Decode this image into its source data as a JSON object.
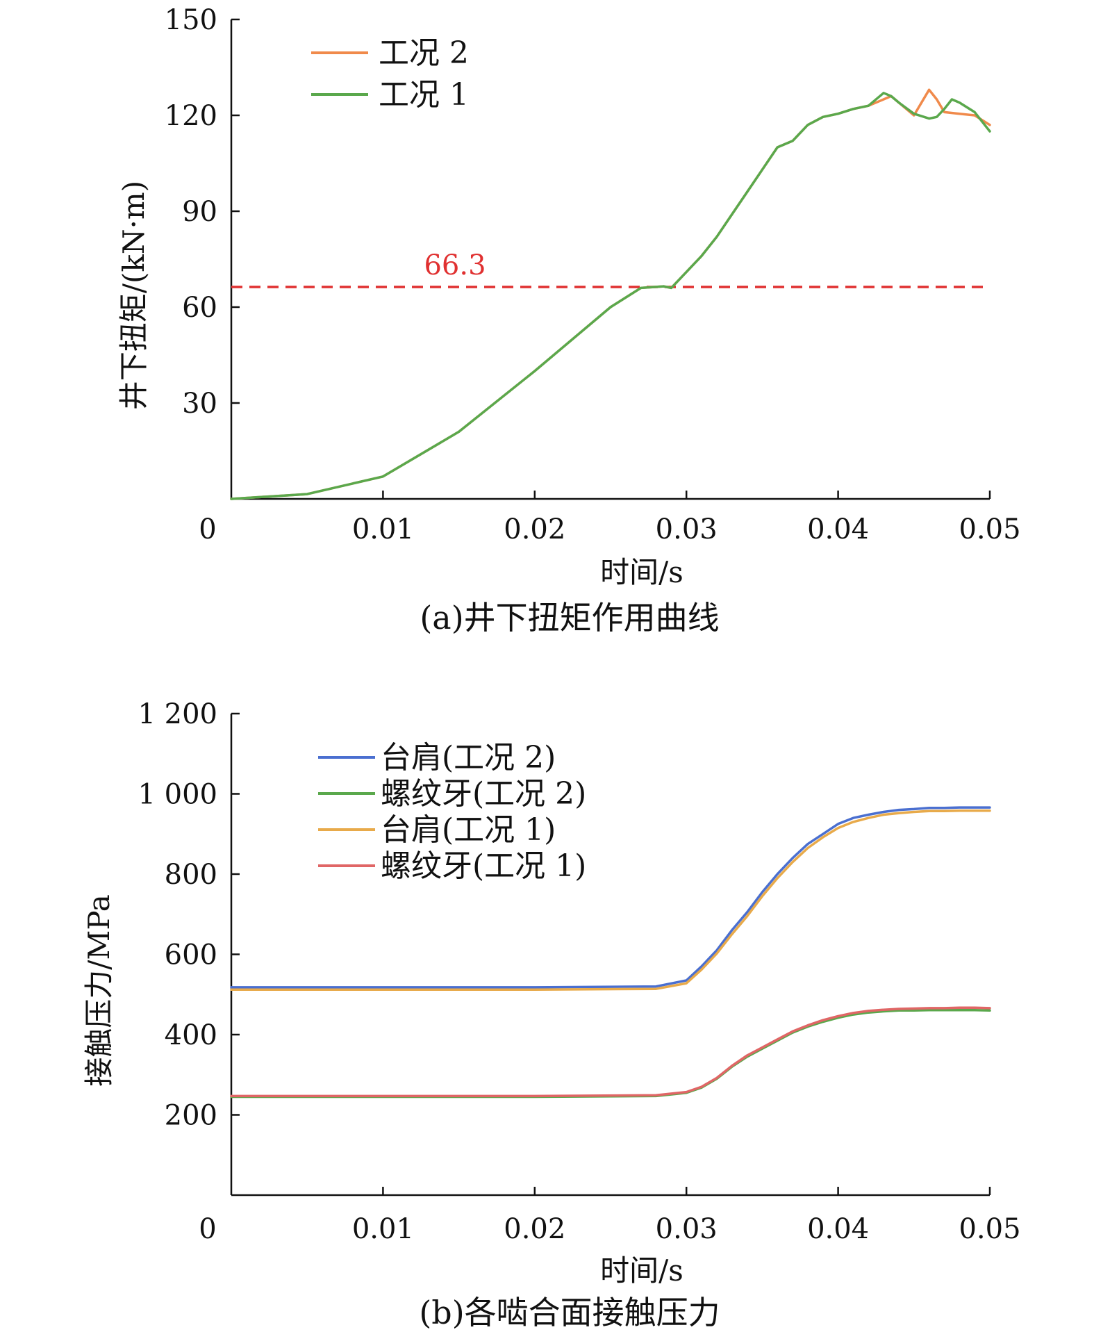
{
  "chart_data": [
    {
      "type": "line",
      "caption": "(a)井下扭矩作用曲线",
      "xlabel": "时间/s",
      "ylabel": "井下扭矩/(kN·m)",
      "xlim": [
        0,
        0.05
      ],
      "ylim": [
        0,
        150
      ],
      "xticks": [
        "0",
        "0.01",
        "0.02",
        "0.03",
        "0.04",
        "0.05"
      ],
      "yticks": [
        "30",
        "60",
        "90",
        "120",
        "150"
      ],
      "reference_line": {
        "value": 66.3,
        "label": "66.3",
        "color": "#e03030",
        "style": "dashed"
      },
      "legend": "top-left",
      "series": [
        {
          "name": "工况 2",
          "color": "#f08a4b",
          "x": [
            0,
            0.005,
            0.01,
            0.015,
            0.02,
            0.025,
            0.027,
            0.0285,
            0.029,
            0.03,
            0.031,
            0.032,
            0.033,
            0.034,
            0.035,
            0.036,
            0.037,
            0.038,
            0.039,
            0.04,
            0.041,
            0.042,
            0.043,
            0.0435,
            0.044,
            0.045,
            0.046,
            0.0465,
            0.047,
            0.048,
            0.049,
            0.05
          ],
          "y": [
            0,
            1.5,
            7,
            21,
            40,
            60,
            66,
            66.5,
            66,
            71,
            76,
            82,
            89,
            96,
            103,
            110,
            112,
            117,
            119.5,
            120.5,
            122,
            123,
            125,
            126,
            124,
            120,
            128,
            125,
            121,
            120.5,
            120,
            117
          ]
        },
        {
          "name": "工况 1",
          "color": "#5aa84c",
          "x": [
            0,
            0.005,
            0.01,
            0.015,
            0.02,
            0.025,
            0.027,
            0.0285,
            0.029,
            0.03,
            0.031,
            0.032,
            0.033,
            0.034,
            0.035,
            0.036,
            0.037,
            0.038,
            0.039,
            0.04,
            0.041,
            0.042,
            0.043,
            0.0435,
            0.044,
            0.045,
            0.046,
            0.0465,
            0.047,
            0.0475,
            0.048,
            0.049,
            0.05
          ],
          "y": [
            0,
            1.5,
            7,
            21,
            40,
            60,
            66,
            66.5,
            66,
            71,
            76,
            82,
            89,
            96,
            103,
            110,
            112,
            117,
            119.5,
            120.5,
            122,
            123,
            127,
            126,
            124,
            120.5,
            119,
            119.5,
            122,
            125,
            124,
            121,
            115
          ]
        }
      ]
    },
    {
      "type": "line",
      "caption": "(b)各啮合面接触压力",
      "xlabel": "时间/s",
      "ylabel": "接触压力/MPa",
      "xlim": [
        0,
        0.05
      ],
      "ylim": [
        0,
        1200
      ],
      "xticks": [
        "0",
        "0.01",
        "0.02",
        "0.03",
        "0.04",
        "0.05"
      ],
      "yticks": [
        "200",
        "400",
        "600",
        "800",
        "1 000",
        "1 200"
      ],
      "legend": "top-left",
      "series": [
        {
          "name": "台肩(工况 2)",
          "color": "#4a6fd0",
          "x": [
            0,
            0.01,
            0.02,
            0.028,
            0.03,
            0.031,
            0.032,
            0.033,
            0.034,
            0.035,
            0.036,
            0.037,
            0.038,
            0.039,
            0.04,
            0.041,
            0.042,
            0.043,
            0.044,
            0.045,
            0.046,
            0.047,
            0.048,
            0.049,
            0.05
          ],
          "y": [
            518,
            518,
            518,
            520,
            535,
            570,
            610,
            660,
            705,
            755,
            800,
            840,
            875,
            900,
            925,
            940,
            948,
            955,
            960,
            962,
            965,
            965,
            966,
            966,
            966
          ]
        },
        {
          "name": "螺纹牙(工况 2)",
          "color": "#5aa84c",
          "x": [
            0,
            0.01,
            0.02,
            0.028,
            0.03,
            0.031,
            0.032,
            0.033,
            0.034,
            0.035,
            0.036,
            0.037,
            0.038,
            0.039,
            0.04,
            0.041,
            0.042,
            0.043,
            0.044,
            0.045,
            0.046,
            0.047,
            0.048,
            0.049,
            0.05
          ],
          "y": [
            245,
            245,
            245,
            247,
            255,
            268,
            290,
            320,
            345,
            365,
            385,
            405,
            420,
            432,
            442,
            450,
            455,
            458,
            460,
            460,
            461,
            461,
            461,
            461,
            460
          ]
        },
        {
          "name": "台肩(工况 1)",
          "color": "#e8aa4a",
          "x": [
            0,
            0.01,
            0.02,
            0.028,
            0.03,
            0.031,
            0.032,
            0.033,
            0.034,
            0.035,
            0.036,
            0.037,
            0.038,
            0.039,
            0.04,
            0.041,
            0.042,
            0.043,
            0.044,
            0.045,
            0.046,
            0.047,
            0.048,
            0.049,
            0.05
          ],
          "y": [
            512,
            512,
            512,
            514,
            528,
            562,
            602,
            650,
            695,
            745,
            790,
            830,
            865,
            892,
            915,
            930,
            940,
            948,
            952,
            955,
            957,
            957,
            958,
            958,
            958
          ]
        },
        {
          "name": "螺纹牙(工况 1)",
          "color": "#e06666",
          "x": [
            0,
            0.01,
            0.02,
            0.028,
            0.03,
            0.031,
            0.032,
            0.033,
            0.034,
            0.035,
            0.036,
            0.037,
            0.038,
            0.039,
            0.04,
            0.041,
            0.042,
            0.043,
            0.044,
            0.045,
            0.046,
            0.047,
            0.048,
            0.049,
            0.05
          ],
          "y": [
            247,
            247,
            247,
            249,
            257,
            270,
            292,
            322,
            348,
            368,
            388,
            408,
            423,
            436,
            446,
            454,
            459,
            462,
            464,
            465,
            466,
            466,
            467,
            467,
            466
          ]
        }
      ]
    }
  ]
}
